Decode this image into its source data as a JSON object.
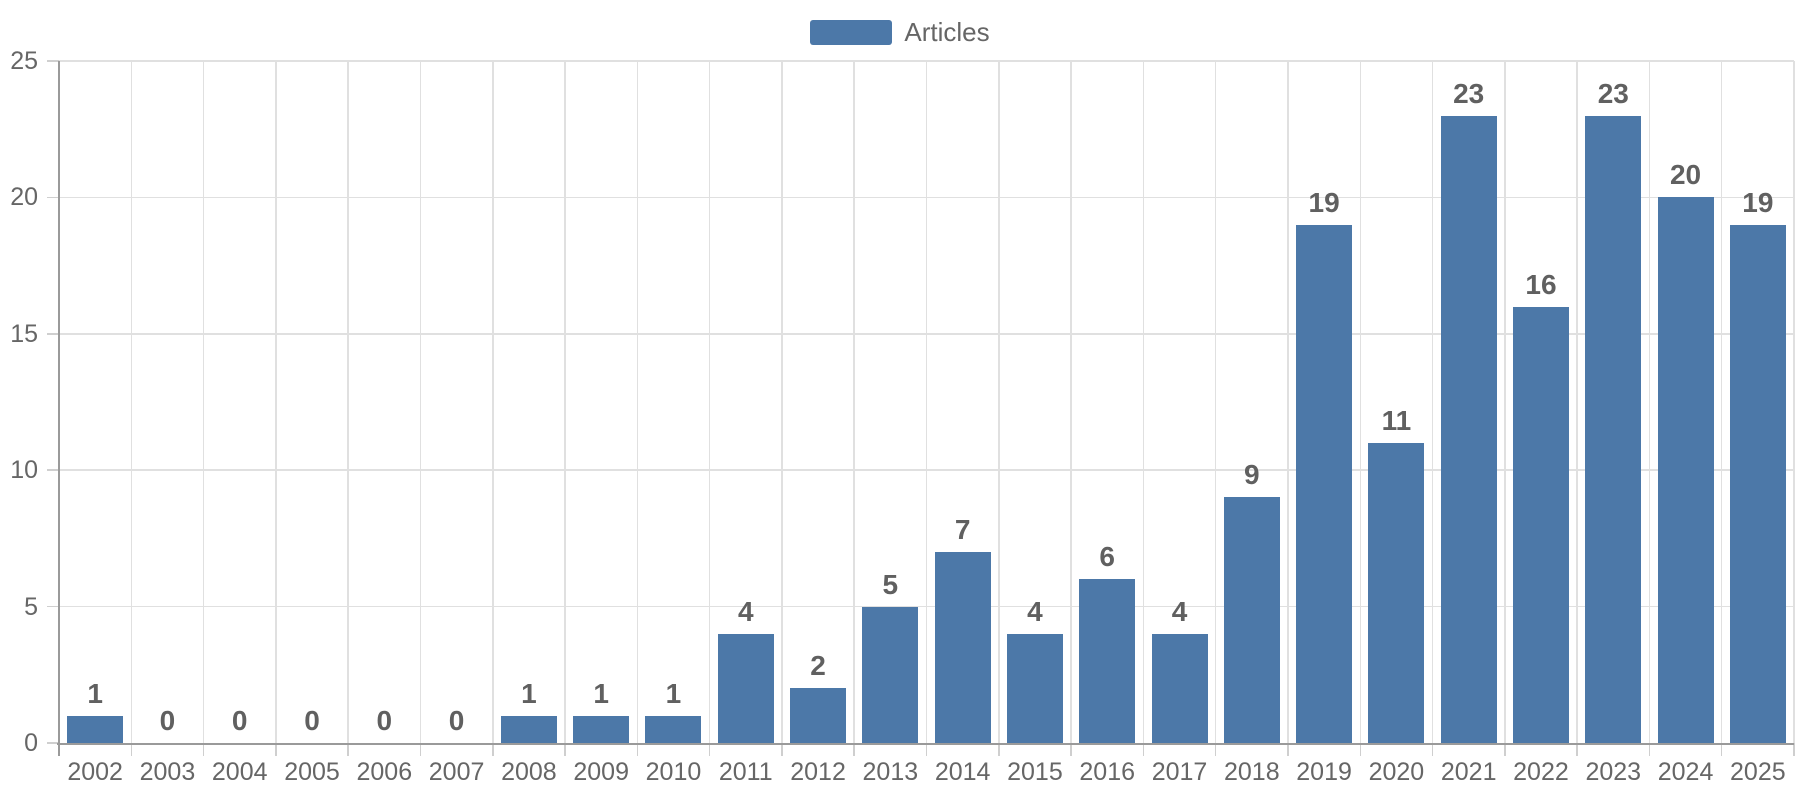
{
  "chart_data": {
    "type": "bar",
    "title": "",
    "legend": "Articles",
    "legend_position": "top-center",
    "categories": [
      "2002",
      "2003",
      "2004",
      "2005",
      "2006",
      "2007",
      "2008",
      "2009",
      "2010",
      "2011",
      "2012",
      "2013",
      "2014",
      "2015",
      "2016",
      "2017",
      "2018",
      "2019",
      "2020",
      "2021",
      "2022",
      "2023",
      "2024",
      "2025"
    ],
    "values": [
      1,
      0,
      0,
      0,
      0,
      0,
      1,
      1,
      1,
      4,
      2,
      5,
      7,
      4,
      6,
      4,
      9,
      19,
      11,
      23,
      16,
      23,
      20,
      19
    ],
    "xlabel": "",
    "ylabel": "",
    "ylim": [
      0,
      25
    ],
    "yticks": [
      0,
      5,
      10,
      15,
      20,
      25
    ],
    "grid": true,
    "data_labels_shown": true,
    "colors": {
      "bar": "#4c78a8",
      "data_label": "#606060",
      "axis_text": "#666666",
      "grid_line": "#e0e0e0",
      "axis_line": "#9a9a9a",
      "tick_mark": "#cfcfcf",
      "background": "#ffffff"
    }
  }
}
